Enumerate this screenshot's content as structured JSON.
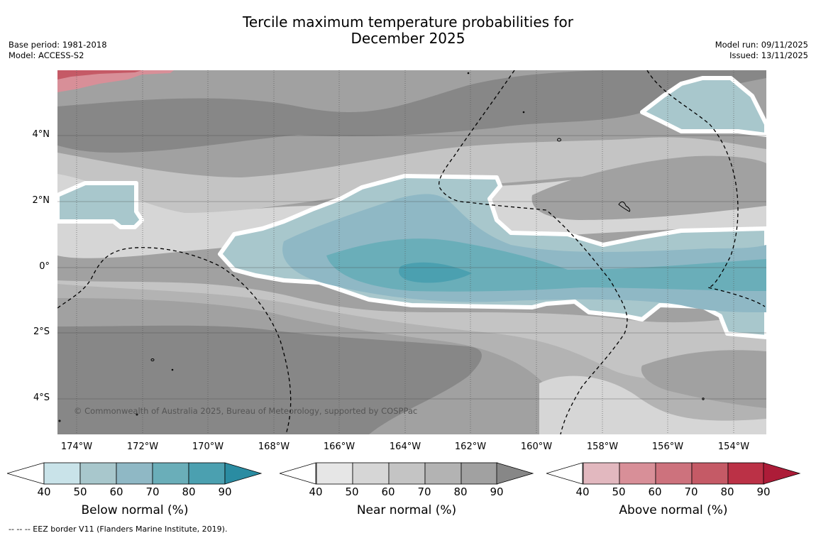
{
  "title": {
    "line1": "Tercile maximum temperature probabilities for",
    "line2": "December 2025"
  },
  "meta": {
    "base_period": "Base period: 1981-2018",
    "model": "Model: ACCESS-S2",
    "model_run": "Model run: 09/11/2025",
    "issued": "Issued: 13/11/2025"
  },
  "map": {
    "lat_labels": [
      "4°N",
      "2°N",
      "0°",
      "2°S",
      "4°S"
    ],
    "lon_labels": [
      "174°W",
      "172°W",
      "170°W",
      "168°W",
      "166°W",
      "164°W",
      "162°W",
      "160°W",
      "158°W",
      "156°W",
      "154°W"
    ],
    "copyright": "© Commonwealth of Australia 2025, Bureau of Meteorology, supported by COSPPac",
    "colors": {
      "near": [
        "#e6e6e6",
        "#d6d6d6",
        "#c4c4c4",
        "#b3b3b3",
        "#a1a1a1",
        "#878787"
      ],
      "below": [
        "#c9e3e9",
        "#a8c7cc",
        "#8fb8c5",
        "#6aaeb9",
        "#4ba0b0",
        "#2a8ca2"
      ],
      "above": [
        "#e2b8bf",
        "#d88f98",
        "#cd727d",
        "#c55a66",
        "#bb3146",
        "#ad1c38"
      ]
    }
  },
  "colorbars": [
    {
      "label": "Below normal (%)",
      "ticks": [
        "40",
        "50",
        "60",
        "70",
        "80",
        "90"
      ],
      "palette": "below"
    },
    {
      "label": "Near normal (%)",
      "ticks": [
        "40",
        "50",
        "60",
        "70",
        "80",
        "90"
      ],
      "palette": "near"
    },
    {
      "label": "Above normal (%)",
      "ticks": [
        "40",
        "50",
        "60",
        "70",
        "80",
        "90"
      ],
      "palette": "above"
    }
  ],
  "footer": "--  --  -- EEZ border V11 (Flanders Marine Institute, 2019)."
}
